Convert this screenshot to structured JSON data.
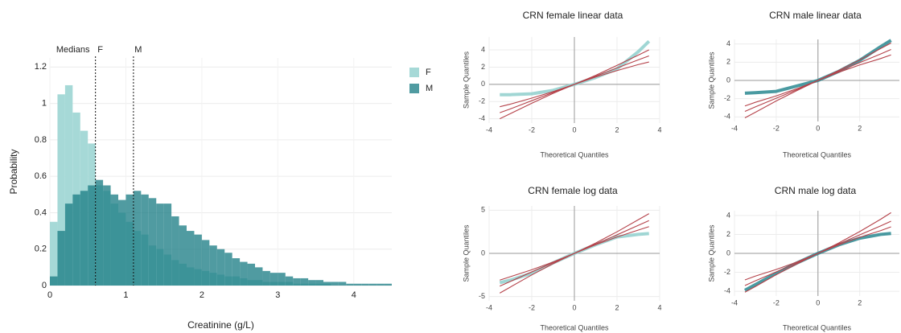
{
  "chart_data": [
    {
      "type": "histogram",
      "xlabel": "Creatinine (g/L)",
      "ylabel": "Probability",
      "annotation": "Medians",
      "median_lines": [
        {
          "name": "F",
          "value": 0.6
        },
        {
          "name": "M",
          "value": 1.1
        }
      ],
      "bins": [
        0,
        0.1,
        0.2,
        0.3,
        0.4,
        0.5,
        0.6,
        0.7,
        0.8,
        0.9,
        1.0,
        1.1,
        1.2,
        1.3,
        1.4,
        1.5,
        1.6,
        1.7,
        1.8,
        1.9,
        2.0,
        2.1,
        2.2,
        2.3,
        2.4,
        2.5,
        2.6,
        2.7,
        2.8,
        2.9,
        3.0,
        3.1,
        3.2,
        3.3,
        3.4,
        3.5,
        3.6,
        3.7,
        3.8,
        3.9,
        4.0,
        4.1,
        4.2,
        4.3,
        4.4,
        4.5
      ],
      "series": [
        {
          "name": "F",
          "color": "#a6d9d7",
          "values": [
            0.35,
            1.05,
            1.1,
            0.95,
            0.85,
            0.78,
            0.55,
            0.52,
            0.45,
            0.4,
            0.35,
            0.3,
            0.28,
            0.22,
            0.2,
            0.17,
            0.14,
            0.12,
            0.1,
            0.09,
            0.08,
            0.07,
            0.06,
            0.05,
            0.05,
            0.04,
            0.03,
            0.03,
            0.02,
            0.02,
            0.02,
            0.02,
            0.01,
            0.01,
            0.01,
            0.01,
            0.01,
            0,
            0,
            0,
            0,
            0,
            0,
            0,
            0
          ]
        },
        {
          "name": "M",
          "color": "#1f7f87",
          "values": [
            0.05,
            0.3,
            0.45,
            0.5,
            0.52,
            0.55,
            0.58,
            0.55,
            0.5,
            0.47,
            0.5,
            0.52,
            0.5,
            0.48,
            0.45,
            0.45,
            0.38,
            0.33,
            0.3,
            0.28,
            0.25,
            0.22,
            0.2,
            0.18,
            0.15,
            0.13,
            0.12,
            0.1,
            0.08,
            0.07,
            0.07,
            0.05,
            0.04,
            0.04,
            0.03,
            0.03,
            0.02,
            0.02,
            0.02,
            0.01,
            0.01,
            0.01,
            0.01,
            0.01,
            0.01
          ]
        }
      ],
      "xlim": [
        0,
        4.5
      ],
      "xticks": [
        0,
        1,
        2,
        3,
        4
      ],
      "ylim": [
        0,
        1.25
      ],
      "yticks": [
        0,
        0.2,
        0.4,
        0.6,
        0.8,
        1,
        1.2
      ],
      "grid": true,
      "legend": "right"
    },
    {
      "type": "qq",
      "title": "CRN female linear data",
      "xlabel": "Theoretical Quantiles",
      "ylabel": "Sample Quantiles",
      "x": [
        -3.5,
        -3,
        -2,
        -1,
        0,
        1,
        2,
        3,
        3.5
      ],
      "series": [
        {
          "color": "#8fcfcd",
          "values": [
            -1.2,
            -1.2,
            -1.1,
            -0.7,
            0,
            0.8,
            1.8,
            3.8,
            5
          ]
        },
        {
          "color": "#b5424a",
          "values": [
            -3.3,
            -2.85,
            -1.9,
            -0.95,
            0,
            0.95,
            1.9,
            2.85,
            3.3
          ]
        },
        {
          "color": "#b5424a",
          "values": [
            -2.6,
            -2.3,
            -1.6,
            -0.85,
            0,
            1.05,
            2.2,
            3.4,
            4.0
          ]
        },
        {
          "color": "#b5424a",
          "values": [
            -4.0,
            -3.4,
            -2.2,
            -1.05,
            0,
            0.85,
            1.6,
            2.3,
            2.6
          ]
        }
      ],
      "xlim": [
        -4,
        4
      ],
      "xticks": [
        -4,
        -2,
        0,
        2,
        4
      ],
      "ylim": [
        -4.5,
        5.5
      ],
      "yticks": [
        -4,
        -2,
        0,
        2,
        4
      ],
      "grid": true
    },
    {
      "type": "qq",
      "title": "CRN male linear data",
      "xlabel": "Theoretical Quantiles",
      "ylabel": "Sample Quantiles",
      "x": [
        -3.5,
        -3,
        -2,
        -1,
        0,
        1,
        2,
        3,
        3.5
      ],
      "series": [
        {
          "color": "#2a8890",
          "values": [
            -1.4,
            -1.35,
            -1.2,
            -0.6,
            0,
            1.0,
            2.2,
            3.7,
            4.4
          ]
        },
        {
          "color": "#b5424a",
          "values": [
            -3.4,
            -2.9,
            -1.95,
            -1,
            0,
            1,
            1.95,
            2.9,
            3.4
          ]
        },
        {
          "color": "#b5424a",
          "values": [
            -2.8,
            -2.4,
            -1.7,
            -0.9,
            0,
            1.1,
            2.25,
            3.5,
            4.1
          ]
        },
        {
          "color": "#b5424a",
          "values": [
            -4.1,
            -3.5,
            -2.25,
            -1.1,
            0,
            0.9,
            1.7,
            2.4,
            2.8
          ]
        }
      ],
      "xlim": [
        -4,
        3.9
      ],
      "xticks": [
        -4,
        -2,
        0,
        2
      ],
      "ylim": [
        -4.5,
        4.5
      ],
      "yticks": [
        -4,
        -2,
        0,
        2,
        4
      ],
      "grid": true
    },
    {
      "type": "qq",
      "title": "CRN female log data",
      "xlabel": "Theoretical Quantiles",
      "ylabel": "Sample Quantiles",
      "x": [
        -3.5,
        -3,
        -2,
        -1,
        0,
        1,
        2,
        3,
        3.5
      ],
      "series": [
        {
          "color": "#8fcfcd",
          "values": [
            -3.4,
            -3.1,
            -2.3,
            -1.1,
            0,
            1.0,
            1.9,
            2.2,
            2.3
          ]
        },
        {
          "color": "#b5424a",
          "values": [
            -3.8,
            -3.25,
            -2.15,
            -1.08,
            0,
            1.08,
            2.15,
            3.25,
            3.8
          ]
        },
        {
          "color": "#b5424a",
          "values": [
            -3.1,
            -2.7,
            -1.9,
            -1.0,
            0,
            1.2,
            2.5,
            3.9,
            4.6
          ]
        },
        {
          "color": "#b5424a",
          "values": [
            -4.6,
            -3.9,
            -2.5,
            -1.2,
            0,
            1.0,
            1.9,
            2.7,
            3.1
          ]
        }
      ],
      "xlim": [
        -4,
        4
      ],
      "xticks": [
        -4,
        -2,
        0,
        2,
        4
      ],
      "ylim": [
        -5.5,
        5.5
      ],
      "yticks": [
        -5,
        0,
        5
      ],
      "grid": true
    },
    {
      "type": "qq",
      "title": "CRN male log data",
      "xlabel": "Theoretical Quantiles",
      "ylabel": "Sample Quantiles",
      "x": [
        -3.5,
        -3,
        -2,
        -1,
        0,
        1,
        2,
        3,
        3.5
      ],
      "series": [
        {
          "color": "#2a8890",
          "values": [
            -3.9,
            -3.3,
            -2.1,
            -1.0,
            0,
            0.9,
            1.6,
            2.0,
            2.1
          ]
        },
        {
          "color": "#b5424a",
          "values": [
            -3.4,
            -2.9,
            -1.95,
            -1,
            0,
            1,
            1.95,
            2.9,
            3.4
          ]
        },
        {
          "color": "#b5424a",
          "values": [
            -2.8,
            -2.4,
            -1.7,
            -0.9,
            0,
            1.1,
            2.3,
            3.6,
            4.3
          ]
        },
        {
          "color": "#b5424a",
          "values": [
            -4.1,
            -3.5,
            -2.25,
            -1.1,
            0,
            0.9,
            1.7,
            2.4,
            2.8
          ]
        }
      ],
      "xlim": [
        -4,
        3.9
      ],
      "xticks": [
        -4,
        -2,
        0,
        2
      ],
      "ylim": [
        -4.5,
        4.5
      ],
      "yticks": [
        -4,
        -2,
        0,
        2,
        4
      ],
      "grid": true
    }
  ]
}
